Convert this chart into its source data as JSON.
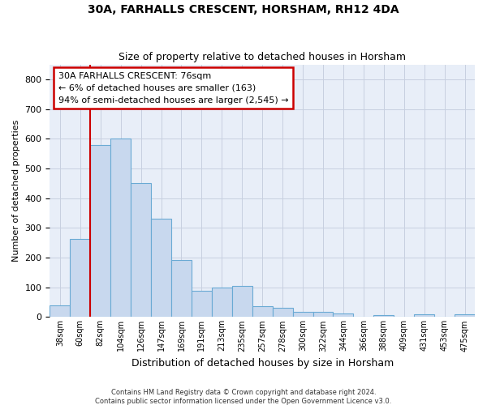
{
  "title": "30A, FARHALLS CRESCENT, HORSHAM, RH12 4DA",
  "subtitle": "Size of property relative to detached houses in Horsham",
  "xlabel": "Distribution of detached houses by size in Horsham",
  "ylabel": "Number of detached properties",
  "footnote1": "Contains HM Land Registry data © Crown copyright and database right 2024.",
  "footnote2": "Contains public sector information licensed under the Open Government Licence v3.0.",
  "bar_labels": [
    "38sqm",
    "60sqm",
    "82sqm",
    "104sqm",
    "126sqm",
    "147sqm",
    "169sqm",
    "191sqm",
    "213sqm",
    "235sqm",
    "257sqm",
    "278sqm",
    "300sqm",
    "322sqm",
    "344sqm",
    "366sqm",
    "388sqm",
    "409sqm",
    "431sqm",
    "453sqm",
    "475sqm"
  ],
  "bar_values": [
    38,
    262,
    580,
    600,
    450,
    330,
    193,
    88,
    100,
    105,
    37,
    32,
    18,
    17,
    13,
    0,
    6,
    0,
    9,
    0,
    8
  ],
  "bar_color": "#c8d8ee",
  "bar_edge_color": "#6aaad4",
  "grid_color": "#c8d0e0",
  "bg_color": "#e8eef8",
  "ylim": [
    0,
    850
  ],
  "yticks": [
    0,
    100,
    200,
    300,
    400,
    500,
    600,
    700,
    800
  ],
  "red_line_x": 1.5,
  "red_line_color": "#cc0000",
  "annotation_line1": "30A FARHALLS CRESCENT: 76sqm",
  "annotation_line2": "← 6% of detached houses are smaller (163)",
  "annotation_line3": "94% of semi-detached houses are larger (2,545) →",
  "annotation_box_color": "#ffffff",
  "annotation_border_color": "#cc0000",
  "title_fontsize": 10,
  "subtitle_fontsize": 9,
  "ylabel_fontsize": 8,
  "xlabel_fontsize": 9
}
